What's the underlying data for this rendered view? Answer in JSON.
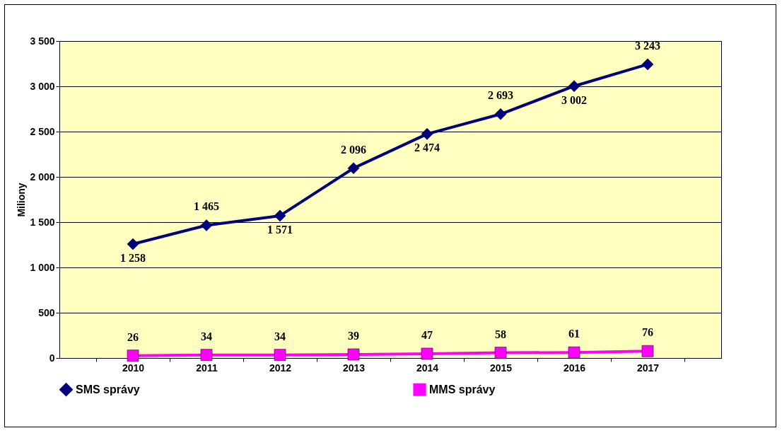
{
  "chart_data": {
    "type": "line",
    "ylabel": "Miliony",
    "categories": [
      "2010",
      "2011",
      "2012",
      "2013",
      "2014",
      "2015",
      "2016",
      "2017"
    ],
    "series": [
      {
        "name": "SMS správy",
        "color": "#000080",
        "marker": "diamond",
        "values": [
          1258,
          1465,
          1571,
          2096,
          2474,
          2693,
          3002,
          3243
        ],
        "value_labels": [
          "1 258",
          "1 465",
          "1 571",
          "2 096",
          "2 474",
          "2 693",
          "3 002",
          "3 243"
        ]
      },
      {
        "name": "MMS správy",
        "color": "#ff00ff",
        "marker": "square",
        "values": [
          26,
          34,
          34,
          39,
          47,
          58,
          61,
          76
        ],
        "value_labels": [
          "26",
          "34",
          "34",
          "39",
          "47",
          "58",
          "61",
          "76"
        ]
      }
    ],
    "ylim": [
      0,
      3500
    ],
    "yticks": [
      {
        "value": 0,
        "label": "0"
      },
      {
        "value": 500,
        "label": "500"
      },
      {
        "value": 1000,
        "label": "1 000"
      },
      {
        "value": 1500,
        "label": "1 500"
      },
      {
        "value": 2000,
        "label": "2 000"
      },
      {
        "value": 2500,
        "label": "2 500"
      },
      {
        "value": 3000,
        "label": "3 000"
      },
      {
        "value": 3500,
        "label": "3 500"
      }
    ],
    "grid": "y",
    "legend": "bottom"
  }
}
